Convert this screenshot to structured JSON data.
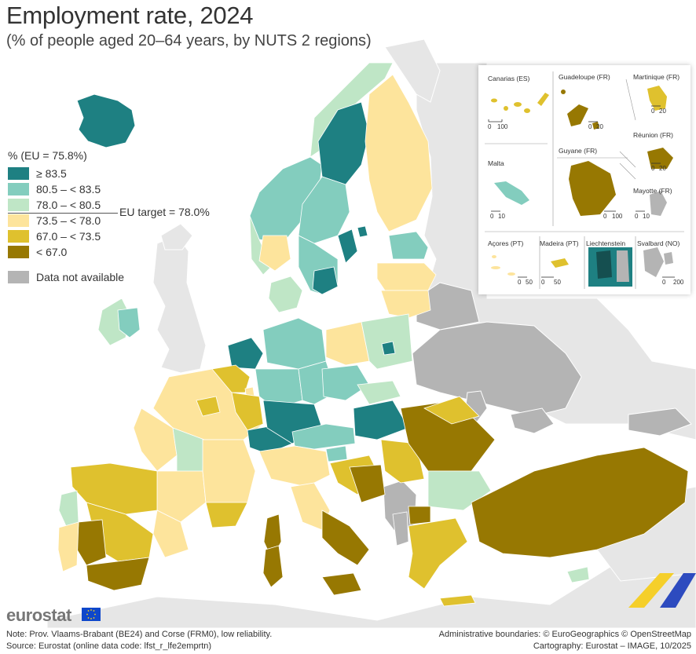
{
  "header": {
    "title": "Employment rate, 2024",
    "subtitle": "(% of people aged 20–64 years, by NUTS 2 regions)"
  },
  "legend": {
    "title": "% (EU = 75.8%)",
    "classes": [
      {
        "label": "≥ 83.5",
        "color": "#1e8082"
      },
      {
        "label": "80.5 – < 83.5",
        "color": "#83cdbe"
      },
      {
        "label": "78.0 – < 80.5",
        "color": "#bfe6c6"
      },
      {
        "label": "73.5 – < 78.0",
        "color": "#fde49c"
      },
      {
        "label": "67.0 – < 73.5",
        "color": "#dfc12e"
      },
      {
        "label": "< 67.0",
        "color": "#977802"
      }
    ],
    "target_label": "EU target = 78.0%",
    "na_label": "Data not available",
    "na_color": "#b4b4b4"
  },
  "insets": {
    "canarias": "Canarias (ES)",
    "guadeloupe": "Guadeloupe (FR)",
    "martinique": "Martinique (FR)",
    "guyane": "Guyane (FR)",
    "reunion": "Réunion (FR)",
    "malta": "Malta",
    "mayotte": "Mayotte (FR)",
    "acores": "Açores (PT)",
    "madeira": "Madeira (PT)",
    "liechtenstein": "Liechtenstein",
    "svalbard": "Svalbard (NO)",
    "scales": {
      "canarias": [
        "0",
        "100"
      ],
      "guadeloupe": [
        "0",
        "20"
      ],
      "martinique": [
        "0",
        "20"
      ],
      "guyane": [
        "0",
        "100"
      ],
      "reunion": [
        "0",
        "20"
      ],
      "malta": [
        "0",
        "10"
      ],
      "mayotte": [
        "0",
        "10"
      ],
      "acores": [
        "0",
        "50"
      ],
      "madeira": [
        "0",
        "50"
      ],
      "svalbard": [
        "0",
        "200"
      ]
    }
  },
  "footer": {
    "logo": "eurostat",
    "note": "Note: Prov. Vlaams-Brabant (BE24) and Corse (FRM0), low reliability.",
    "source": "Source: Eurostat (online data code: lfst_r_lfe2emprtn)",
    "admin": "Administrative boundaries: © EuroGeographics © OpenStreetMap",
    "carto": "Cartography: Eurostat – IMAGE, 10/2025"
  },
  "colors": {
    "sea": "#ffffff",
    "non_eu_land": "#e6e6e6",
    "border": "#ffffff"
  }
}
